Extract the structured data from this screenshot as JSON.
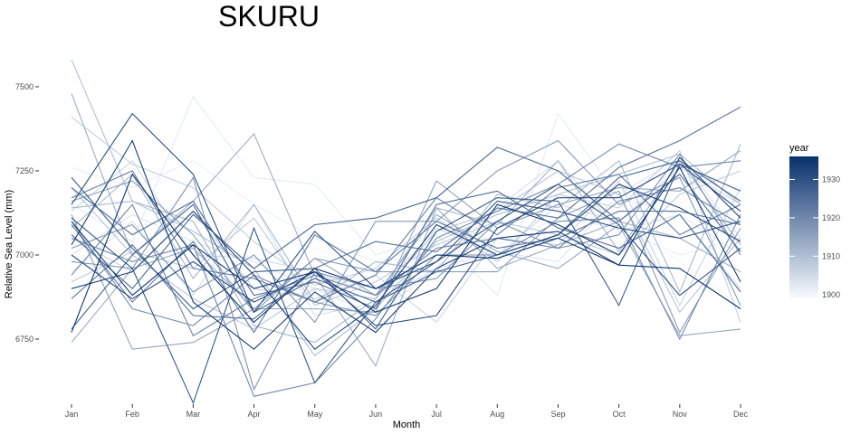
{
  "chart_data": {
    "type": "line",
    "title": "SKURU",
    "xlabel": "Month",
    "ylabel": "Relative Sea Level (mm)",
    "categories": [
      "Jan",
      "Feb",
      "Mar",
      "Apr",
      "May",
      "Jun",
      "Jul",
      "Aug",
      "Sep",
      "Oct",
      "Nov",
      "Dec"
    ],
    "y_ticks": [
      6750,
      7000,
      7250,
      7500
    ],
    "ylim": [
      6570,
      7610
    ],
    "grid": false,
    "legend": {
      "title": "year",
      "position": "right",
      "ticks": [
        1900,
        1910,
        1920,
        1930
      ],
      "range": [
        1899,
        1936
      ],
      "color_low": "#f7fbff",
      "color_high": "#08306b"
    },
    "series": [
      {
        "year": 1900,
        "values": [
          7180,
          7080,
          7120,
          7060,
          7020,
          6960,
          7010,
          7060,
          7200,
          7100,
          6980,
          6850
        ]
      },
      {
        "year": 1901,
        "values": [
          7260,
          7200,
          7280,
          7150,
          7050,
          6980,
          7000,
          7030,
          7110,
          7080,
          7000,
          7050
        ]
      },
      {
        "year": 1902,
        "values": [
          7150,
          7040,
          7470,
          7230,
          7210,
          7000,
          7060,
          6880,
          7420,
          7170,
          7120,
          7000
        ]
      },
      {
        "year": 1903,
        "values": [
          7000,
          7120,
          7040,
          6980,
          6900,
          6820,
          6960,
          7010,
          6980,
          7180,
          7290,
          7050
        ]
      },
      {
        "year": 1904,
        "values": [
          6950,
          7100,
          6880,
          7150,
          6820,
          6860,
          6960,
          7140,
          7280,
          7070,
          7120,
          6900
        ]
      },
      {
        "year": 1905,
        "values": [
          7130,
          7280,
          7000,
          6990,
          6950,
          6880,
          7080,
          7000,
          7150,
          7100,
          7260,
          7150
        ]
      },
      {
        "year": 1906,
        "values": [
          7050,
          6950,
          7130,
          6900,
          6870,
          6940,
          6800,
          7050,
          7030,
          7220,
          6850,
          7200
        ]
      },
      {
        "year": 1907,
        "values": [
          7410,
          7270,
          7200,
          7040,
          6910,
          6960,
          7110,
          6980,
          7180,
          7140,
          7310,
          6800
        ]
      },
      {
        "year": 1908,
        "values": [
          6920,
          7010,
          6960,
          7110,
          6850,
          6920,
          7030,
          7100,
          7060,
          7000,
          7180,
          7250
        ]
      },
      {
        "year": 1909,
        "values": [
          7200,
          7000,
          6870,
          6780,
          6900,
          6870,
          7070,
          7130,
          7250,
          7180,
          6830,
          7050
        ]
      },
      {
        "year": 1910,
        "values": [
          7580,
          7160,
          7070,
          6960,
          6700,
          6840,
          7040,
          7120,
          7180,
          7240,
          7300,
          7150
        ]
      },
      {
        "year": 1911,
        "values": [
          7080,
          7240,
          6930,
          7150,
          6860,
          6980,
          6950,
          7180,
          7140,
          7280,
          6890,
          7330
        ]
      },
      {
        "year": 1912,
        "values": [
          7140,
          7160,
          7100,
          6790,
          6740,
          6870,
          7140,
          7090,
          7280,
          7010,
          7280,
          7030
        ]
      },
      {
        "year": 1913,
        "values": [
          7480,
          7000,
          7160,
          7360,
          6940,
          6670,
          7140,
          6960,
          7030,
          7100,
          7050,
          6950
        ]
      },
      {
        "year": 1914,
        "values": [
          6740,
          6960,
          7020,
          6840,
          6990,
          6880,
          7120,
          7010,
          6960,
          7090,
          6760,
          6780
        ]
      },
      {
        "year": 1915,
        "values": [
          7120,
          6720,
          6740,
          6840,
          6840,
          6830,
          7220,
          7080,
          7150,
          7200,
          7190,
          7310
        ]
      },
      {
        "year": 1916,
        "values": [
          7160,
          7220,
          7060,
          6830,
          6990,
          6950,
          6950,
          6950,
          7110,
          7190,
          6770,
          7080
        ]
      },
      {
        "year": 1917,
        "values": [
          7020,
          7090,
          6890,
          7000,
          6800,
          7100,
          7100,
          7250,
          7340,
          7150,
          7230,
          6850
        ]
      },
      {
        "year": 1918,
        "values": [
          6980,
          6960,
          7230,
          6600,
          6950,
          6900,
          6930,
          7100,
          7020,
          7060,
          7300,
          7000
        ]
      },
      {
        "year": 1919,
        "values": [
          7100,
          6840,
          6790,
          6940,
          6860,
          6820,
          7000,
          7000,
          7100,
          7110,
          6750,
          7120
        ]
      },
      {
        "year": 1920,
        "values": [
          7050,
          6980,
          7030,
          6580,
          6620,
          6810,
          7050,
          7130,
          7210,
          7330,
          7260,
          7280
        ]
      },
      {
        "year": 1921,
        "values": [
          6940,
          7150,
          6760,
          6870,
          6940,
          6880,
          7020,
          7050,
          7020,
          7160,
          7200,
          7090
        ]
      },
      {
        "year": 1922,
        "values": [
          7170,
          7250,
          6960,
          6930,
          6860,
          6940,
          7170,
          7060,
          7200,
          7240,
          7060,
          7150
        ]
      },
      {
        "year": 1923,
        "values": [
          7090,
          6860,
          7040,
          6770,
          7060,
          6950,
          7100,
          7020,
          7050,
          7130,
          7130,
          7090
        ]
      },
      {
        "year": 1924,
        "values": [
          6870,
          7030,
          6820,
          6810,
          6960,
          7040,
          7010,
          7140,
          7110,
          7260,
          7340,
          7440
        ]
      },
      {
        "year": 1925,
        "values": [
          7200,
          7060,
          7160,
          6880,
          6920,
          6840,
          7150,
          7190,
          7080,
          7020,
          7120,
          6890
        ]
      },
      {
        "year": 1926,
        "values": [
          7060,
          6900,
          7120,
          6960,
          7090,
          7110,
          7170,
          7320,
          7250,
          7100,
          7240,
          7010
        ]
      },
      {
        "year": 1927,
        "values": [
          6780,
          7000,
          7150,
          6830,
          6930,
          6860,
          6950,
          7000,
          7060,
          7230,
          7280,
          7160
        ]
      },
      {
        "year": 1928,
        "values": [
          7230,
          7020,
          6840,
          6950,
          6960,
          6780,
          7070,
          7170,
          7160,
          6850,
          7270,
          7190
        ]
      },
      {
        "year": 1929,
        "values": [
          7110,
          6960,
          6560,
          7080,
          6620,
          6860,
          6980,
          7160,
          7130,
          7080,
          7050,
          7100
        ]
      },
      {
        "year": 1930,
        "values": [
          7150,
          7420,
          7240,
          6830,
          7070,
          6900,
          6980,
          7100,
          7210,
          7090,
          6880,
          7020
        ]
      },
      {
        "year": 1931,
        "values": [
          7000,
          6870,
          6980,
          6860,
          6950,
          6790,
          6820,
          7080,
          7170,
          7170,
          7270,
          7130
        ]
      },
      {
        "year": 1932,
        "values": [
          6900,
          6950,
          7130,
          6940,
          6720,
          6850,
          7090,
          7000,
          7060,
          7210,
          7140,
          7040
        ]
      },
      {
        "year": 1933,
        "values": [
          7030,
          7340,
          6860,
          6720,
          6890,
          6770,
          6960,
          7050,
          7070,
          6970,
          7290,
          7110
        ]
      },
      {
        "year": 1934,
        "values": [
          7100,
          6880,
          7030,
          6900,
          6950,
          6830,
          6900,
          7150,
          7090,
          7000,
          7260,
          6920
        ]
      },
      {
        "year": 1935,
        "values": [
          6770,
          7240,
          7000,
          6800,
          6960,
          6900,
          7000,
          6990,
          7050,
          6970,
          6960,
          6840
        ]
      }
    ]
  }
}
